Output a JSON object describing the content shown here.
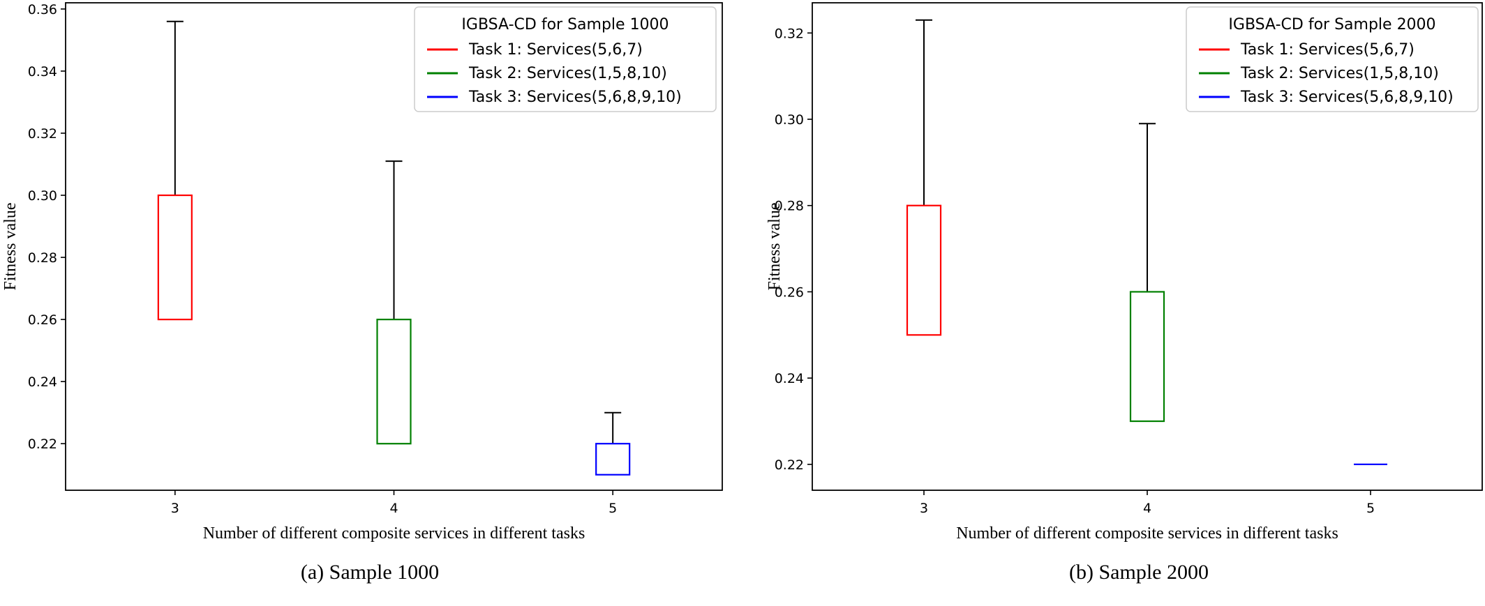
{
  "chart_data": [
    {
      "type": "box",
      "caption": "(a) Sample 1000",
      "xlabel": "Number of different composite services in different tasks",
      "ylabel": "Fitness value",
      "categories": [
        "3",
        "4",
        "5"
      ],
      "ylim": [
        0.205,
        0.362
      ],
      "yticks": [
        "0.22",
        "0.24",
        "0.26",
        "0.28",
        "0.30",
        "0.32",
        "0.34",
        "0.36"
      ],
      "legend": {
        "title": "IGBSA-CD for Sample 1000",
        "position": "top-right",
        "entries": [
          "Task 1: Services(5,6,7)",
          "Task 2: Services(1,5,8,10)",
          "Task 3: Services(5,6,8,9,10)"
        ]
      },
      "series": [
        {
          "name": "Task 1: Services(5,6,7)",
          "color": "#ff0000",
          "x": "3",
          "q1": 0.26,
          "q3": 0.3,
          "whisker_low": 0.26,
          "whisker_high": 0.356
        },
        {
          "name": "Task 2: Services(1,5,8,10)",
          "color": "#008000",
          "x": "4",
          "q1": 0.22,
          "q3": 0.26,
          "whisker_low": 0.22,
          "whisker_high": 0.311
        },
        {
          "name": "Task 3: Services(5,6,8,9,10)",
          "color": "#0000ff",
          "x": "5",
          "q1": 0.21,
          "q3": 0.22,
          "whisker_low": 0.21,
          "whisker_high": 0.23
        }
      ]
    },
    {
      "type": "box",
      "caption": "(b) Sample 2000",
      "xlabel": "Number of different composite services in different tasks",
      "ylabel": "Fitness value",
      "categories": [
        "3",
        "4",
        "5"
      ],
      "ylim": [
        0.214,
        0.327
      ],
      "yticks": [
        "0.22",
        "0.24",
        "0.26",
        "0.28",
        "0.30",
        "0.32"
      ],
      "legend": {
        "title": "IGBSA-CD for Sample 2000",
        "position": "top-right",
        "entries": [
          "Task 1: Services(5,6,7)",
          "Task 2: Services(1,5,8,10)",
          "Task 3: Services(5,6,8,9,10)"
        ]
      },
      "series": [
        {
          "name": "Task 1: Services(5,6,7)",
          "color": "#ff0000",
          "x": "3",
          "q1": 0.25,
          "q3": 0.28,
          "whisker_low": 0.25,
          "whisker_high": 0.323
        },
        {
          "name": "Task 2: Services(1,5,8,10)",
          "color": "#008000",
          "x": "4",
          "q1": 0.23,
          "q3": 0.26,
          "whisker_low": 0.23,
          "whisker_high": 0.299
        },
        {
          "name": "Task 3: Services(5,6,8,9,10)",
          "color": "#0000ff",
          "x": "5",
          "q1": 0.22,
          "q3": 0.22,
          "whisker_low": 0.22,
          "whisker_high": 0.22
        }
      ]
    }
  ]
}
